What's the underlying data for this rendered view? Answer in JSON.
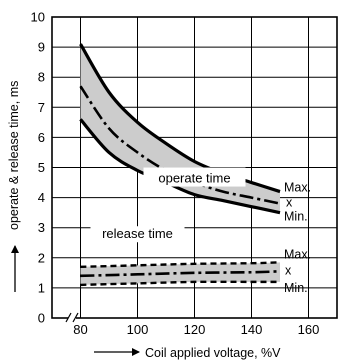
{
  "chart_data": {
    "type": "line",
    "title": "",
    "xlabel": "Coil applied voltage, %V",
    "ylabel": "operate & release time, ms",
    "xlim": [
      70,
      170
    ],
    "ylim": [
      0,
      10
    ],
    "x_ticks": [
      80,
      100,
      120,
      140,
      160
    ],
    "y_ticks": [
      0,
      1,
      2,
      3,
      4,
      5,
      6,
      7,
      8,
      9,
      10
    ],
    "x_tick_labels": [
      "80",
      "100",
      "120",
      "140",
      "160"
    ],
    "y_tick_labels": [
      "0",
      "1",
      "2",
      "3",
      "4",
      "5",
      "6",
      "7",
      "8",
      "9",
      "10"
    ],
    "grid": true,
    "axis_break": "x",
    "colors": {
      "line": "#000000",
      "band": "#cccccc",
      "grid": "#000000"
    },
    "groups": [
      {
        "label": "operate time",
        "series": [
          {
            "name": "Max.",
            "x": [
              80,
              90,
              100,
              110,
              120,
              130,
              140,
              150
            ],
            "y": [
              9.1,
              7.5,
              6.5,
              5.8,
              5.2,
              4.8,
              4.5,
              4.2
            ]
          },
          {
            "name": "x",
            "x": [
              80,
              90,
              100,
              110,
              120,
              130,
              140,
              150
            ],
            "y": [
              7.7,
              6.3,
              5.5,
              4.9,
              4.5,
              4.2,
              4.0,
              3.8
            ]
          },
          {
            "name": "Min.",
            "x": [
              80,
              90,
              100,
              110,
              120,
              130,
              140,
              150
            ],
            "y": [
              6.6,
              5.5,
              4.9,
              4.5,
              4.1,
              3.9,
              3.7,
              3.5
            ]
          }
        ]
      },
      {
        "label": "release time",
        "series": [
          {
            "name": "Max.",
            "x": [
              80,
              100,
              120,
              140,
              150
            ],
            "y": [
              1.7,
              1.75,
              1.8,
              1.82,
              1.85
            ]
          },
          {
            "name": "x",
            "x": [
              80,
              100,
              120,
              140,
              150
            ],
            "y": [
              1.4,
              1.45,
              1.5,
              1.52,
              1.55
            ]
          },
          {
            "name": "Min.",
            "x": [
              80,
              100,
              120,
              140,
              150
            ],
            "y": [
              1.1,
              1.15,
              1.2,
              1.2,
              1.2
            ]
          }
        ]
      }
    ]
  }
}
